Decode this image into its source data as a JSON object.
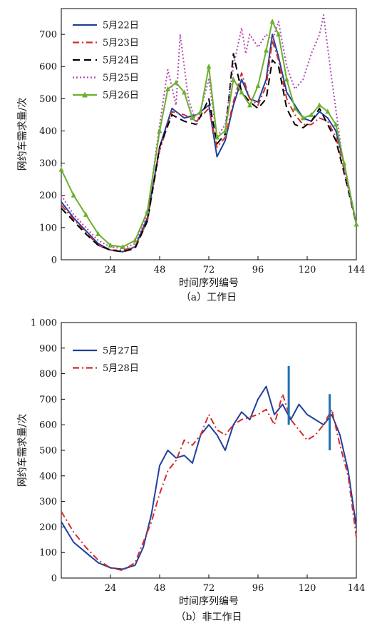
{
  "chart_data": [
    {
      "type": "line",
      "caption": "（a）工作日",
      "xlabel": "时间序列编号",
      "ylabel": "网约车需求量/次",
      "xlim": [
        0,
        144
      ],
      "ylim": [
        0,
        780
      ],
      "xticks": [
        24,
        48,
        72,
        96,
        120,
        144
      ],
      "yticks": [
        0,
        100,
        200,
        300,
        400,
        500,
        600,
        700
      ],
      "ytick_labels": [
        "0",
        "100",
        "200",
        "300",
        "400",
        "500",
        "600",
        "700"
      ],
      "grid": false,
      "legend_position": "top-left",
      "series": [
        {
          "name": "5月22日",
          "color": "#1f3f9e",
          "dash": "solid",
          "marker": "none",
          "x": [
            0,
            6,
            12,
            18,
            24,
            30,
            36,
            42,
            48,
            54,
            60,
            66,
            72,
            76,
            80,
            84,
            88,
            92,
            96,
            100,
            103,
            106,
            110,
            114,
            118,
            122,
            126,
            130,
            134,
            138,
            144
          ],
          "y": [
            180,
            130,
            90,
            50,
            30,
            25,
            40,
            130,
            350,
            470,
            440,
            450,
            480,
            320,
            370,
            480,
            560,
            500,
            490,
            560,
            700,
            630,
            520,
            480,
            440,
            430,
            460,
            440,
            400,
            300,
            110
          ]
        },
        {
          "name": "5月23日",
          "color": "#d62b2b",
          "dash": "dashdot",
          "marker": "none",
          "x": [
            0,
            6,
            12,
            18,
            24,
            30,
            36,
            42,
            48,
            54,
            60,
            66,
            72,
            76,
            80,
            84,
            88,
            92,
            96,
            100,
            103,
            106,
            110,
            114,
            118,
            122,
            126,
            130,
            134,
            138,
            144
          ],
          "y": [
            170,
            125,
            85,
            45,
            30,
            30,
            40,
            120,
            340,
            460,
            450,
            430,
            470,
            350,
            380,
            490,
            580,
            500,
            480,
            540,
            680,
            620,
            500,
            450,
            420,
            420,
            440,
            430,
            380,
            280,
            110
          ]
        },
        {
          "name": "5月24日",
          "color": "#000000",
          "dash": "dashed",
          "marker": "none",
          "x": [
            0,
            6,
            12,
            18,
            24,
            30,
            36,
            42,
            48,
            54,
            60,
            66,
            72,
            76,
            80,
            84,
            88,
            92,
            96,
            100,
            103,
            106,
            110,
            114,
            118,
            122,
            126,
            130,
            134,
            138,
            144
          ],
          "y": [
            160,
            120,
            80,
            45,
            30,
            25,
            35,
            120,
            350,
            450,
            430,
            420,
            500,
            360,
            390,
            640,
            520,
            490,
            470,
            500,
            620,
            600,
            470,
            420,
            410,
            430,
            470,
            420,
            370,
            270,
            110
          ]
        },
        {
          "name": "5月25日",
          "color": "#b347b3",
          "dash": "dotted",
          "marker": "none",
          "x": [
            0,
            6,
            12,
            18,
            24,
            30,
            36,
            42,
            48,
            52,
            56,
            58,
            62,
            66,
            72,
            76,
            80,
            84,
            88,
            90,
            92,
            96,
            100,
            103,
            106,
            110,
            114,
            118,
            122,
            126,
            128,
            132,
            138,
            144
          ],
          "y": [
            200,
            140,
            100,
            60,
            40,
            35,
            50,
            140,
            420,
            590,
            480,
            700,
            500,
            420,
            560,
            380,
            420,
            600,
            720,
            640,
            700,
            660,
            700,
            680,
            740,
            600,
            530,
            560,
            640,
            700,
            760,
            560,
            280,
            110
          ]
        },
        {
          "name": "5月26日",
          "color": "#6ab02e",
          "dash": "solid",
          "marker": "triangle",
          "x": [
            0,
            6,
            12,
            18,
            24,
            30,
            36,
            42,
            48,
            52,
            56,
            60,
            64,
            68,
            72,
            76,
            80,
            84,
            88,
            92,
            96,
            100,
            103,
            106,
            110,
            114,
            118,
            122,
            126,
            130,
            134,
            138,
            144
          ],
          "y": [
            280,
            200,
            140,
            80,
            45,
            40,
            60,
            150,
            400,
            530,
            550,
            520,
            440,
            460,
            600,
            380,
            400,
            560,
            520,
            480,
            540,
            650,
            740,
            700,
            560,
            470,
            440,
            450,
            480,
            460,
            420,
            300,
            110
          ]
        }
      ]
    },
    {
      "type": "line",
      "caption": "（b）非工作日",
      "xlabel": "时间序列编号",
      "ylabel": "网约车需求量/次",
      "xlim": [
        0,
        144
      ],
      "ylim": [
        0,
        1000
      ],
      "xticks": [
        24,
        48,
        72,
        96,
        120,
        144
      ],
      "yticks": [
        0,
        100,
        200,
        300,
        400,
        500,
        600,
        700,
        800,
        900,
        1000
      ],
      "ytick_labels": [
        "0",
        "100",
        "200",
        "300",
        "400",
        "500",
        "600",
        "700",
        "800",
        "900",
        "1 000"
      ],
      "grid": false,
      "legend_position": "top-left",
      "series": [
        {
          "name": "5月27日",
          "color": "#1f3f9e",
          "dash": "solid",
          "marker": "none",
          "x": [
            0,
            6,
            12,
            18,
            24,
            30,
            36,
            40,
            44,
            48,
            52,
            56,
            60,
            64,
            68,
            72,
            76,
            80,
            84,
            88,
            92,
            96,
            100,
            104,
            108,
            112,
            116,
            120,
            124,
            128,
            132,
            136,
            140,
            144
          ],
          "y": [
            220,
            140,
            100,
            60,
            40,
            35,
            50,
            120,
            250,
            440,
            500,
            470,
            480,
            450,
            560,
            600,
            560,
            500,
            600,
            650,
            620,
            700,
            750,
            640,
            680,
            620,
            680,
            640,
            620,
            600,
            640,
            560,
            420,
            200
          ]
        },
        {
          "name": "5月28日",
          "color": "#d62b2b",
          "dash": "dashdot",
          "marker": "none",
          "x": [
            0,
            6,
            12,
            18,
            24,
            30,
            36,
            40,
            44,
            48,
            52,
            56,
            60,
            64,
            68,
            72,
            76,
            80,
            84,
            88,
            92,
            96,
            100,
            104,
            108,
            112,
            116,
            120,
            124,
            128,
            132,
            136,
            140,
            144
          ],
          "y": [
            260,
            180,
            120,
            70,
            40,
            30,
            60,
            140,
            220,
            330,
            420,
            460,
            540,
            520,
            560,
            640,
            580,
            560,
            600,
            620,
            630,
            640,
            660,
            600,
            720,
            620,
            580,
            540,
            560,
            600,
            660,
            520,
            400,
            160
          ]
        }
      ],
      "annotations": [
        {
          "type": "vertical-marker",
          "x": 111,
          "y_range": [
            600,
            830
          ],
          "color": "#1f6fb3"
        },
        {
          "type": "vertical-marker",
          "x": 131,
          "y_range": [
            500,
            720
          ],
          "color": "#1f6fb3"
        }
      ]
    }
  ]
}
